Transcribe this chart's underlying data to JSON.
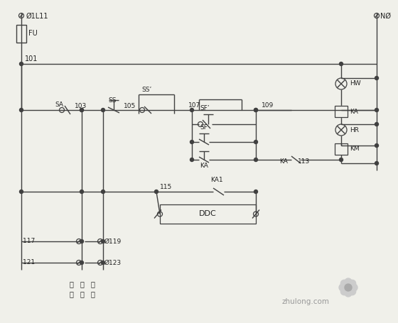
{
  "bg_color": "#f0f0ea",
  "line_color": "#404040",
  "text_color": "#222222",
  "figsize": [
    5.6,
    4.55
  ],
  "dpi": 100,
  "labels": {
    "phase_L": "Ø1L11",
    "neutral_N": "NØ",
    "FU": "FU",
    "n101": "101",
    "n103": "103",
    "n105": "105",
    "n107": "107",
    "n109": "109",
    "n113": "113",
    "n115": "115",
    "n117": "117 ",
    "n119": "Ø119",
    "n121": "121 ",
    "n123": "Ø123",
    "SA": "SA",
    "SS": "SS",
    "SS2": "SS’",
    "SF1": "SF’",
    "SF2": "SF",
    "KA_branch": "KA",
    "KA1": "KA1",
    "DDC": "DDC",
    "HW": "HW",
    "KA_coil": "KA",
    "HR": "HR",
    "KM": "KM",
    "KA_113": "KA",
    "n113b": "113",
    "auto": "自",
    "stop": "傘",
    "hand": "手",
    "dong1": "动",
    "zhi": "止",
    "dong2": "动",
    "watermark": "zhulong.com"
  }
}
